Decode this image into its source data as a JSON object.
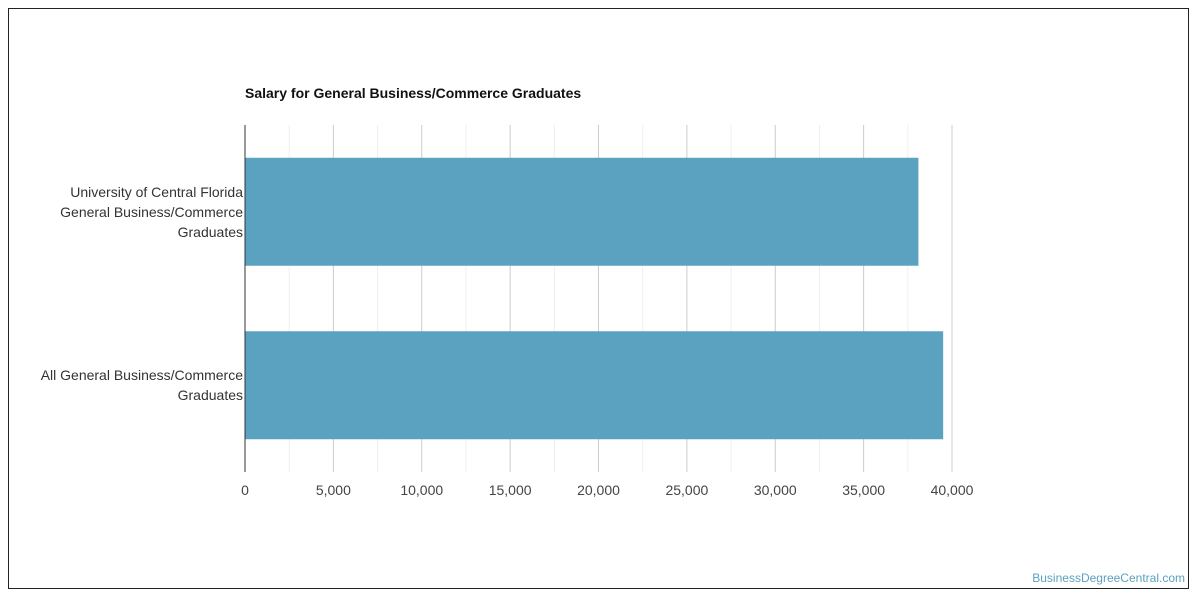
{
  "chart_data": {
    "type": "bar",
    "orientation": "horizontal",
    "title": "Salary for General Business/Commerce Graduates",
    "categories": [
      [
        "University of Central Florida",
        "General Business/Commerce",
        "Graduates"
      ],
      [
        "All General Business/Commerce",
        "Graduates"
      ]
    ],
    "values": [
      38100,
      39500
    ],
    "xlim": [
      0,
      40000
    ],
    "xticks": [
      "0",
      "5,000",
      "10,000",
      "15,000",
      "20,000",
      "25,000",
      "30,000",
      "35,000",
      "40,000"
    ],
    "xtick_values": [
      0,
      5000,
      10000,
      15000,
      20000,
      25000,
      30000,
      35000,
      40000
    ],
    "grid": true,
    "bar_color": "#5ba2c1"
  },
  "credit": "BusinessDegreeCentral.com"
}
